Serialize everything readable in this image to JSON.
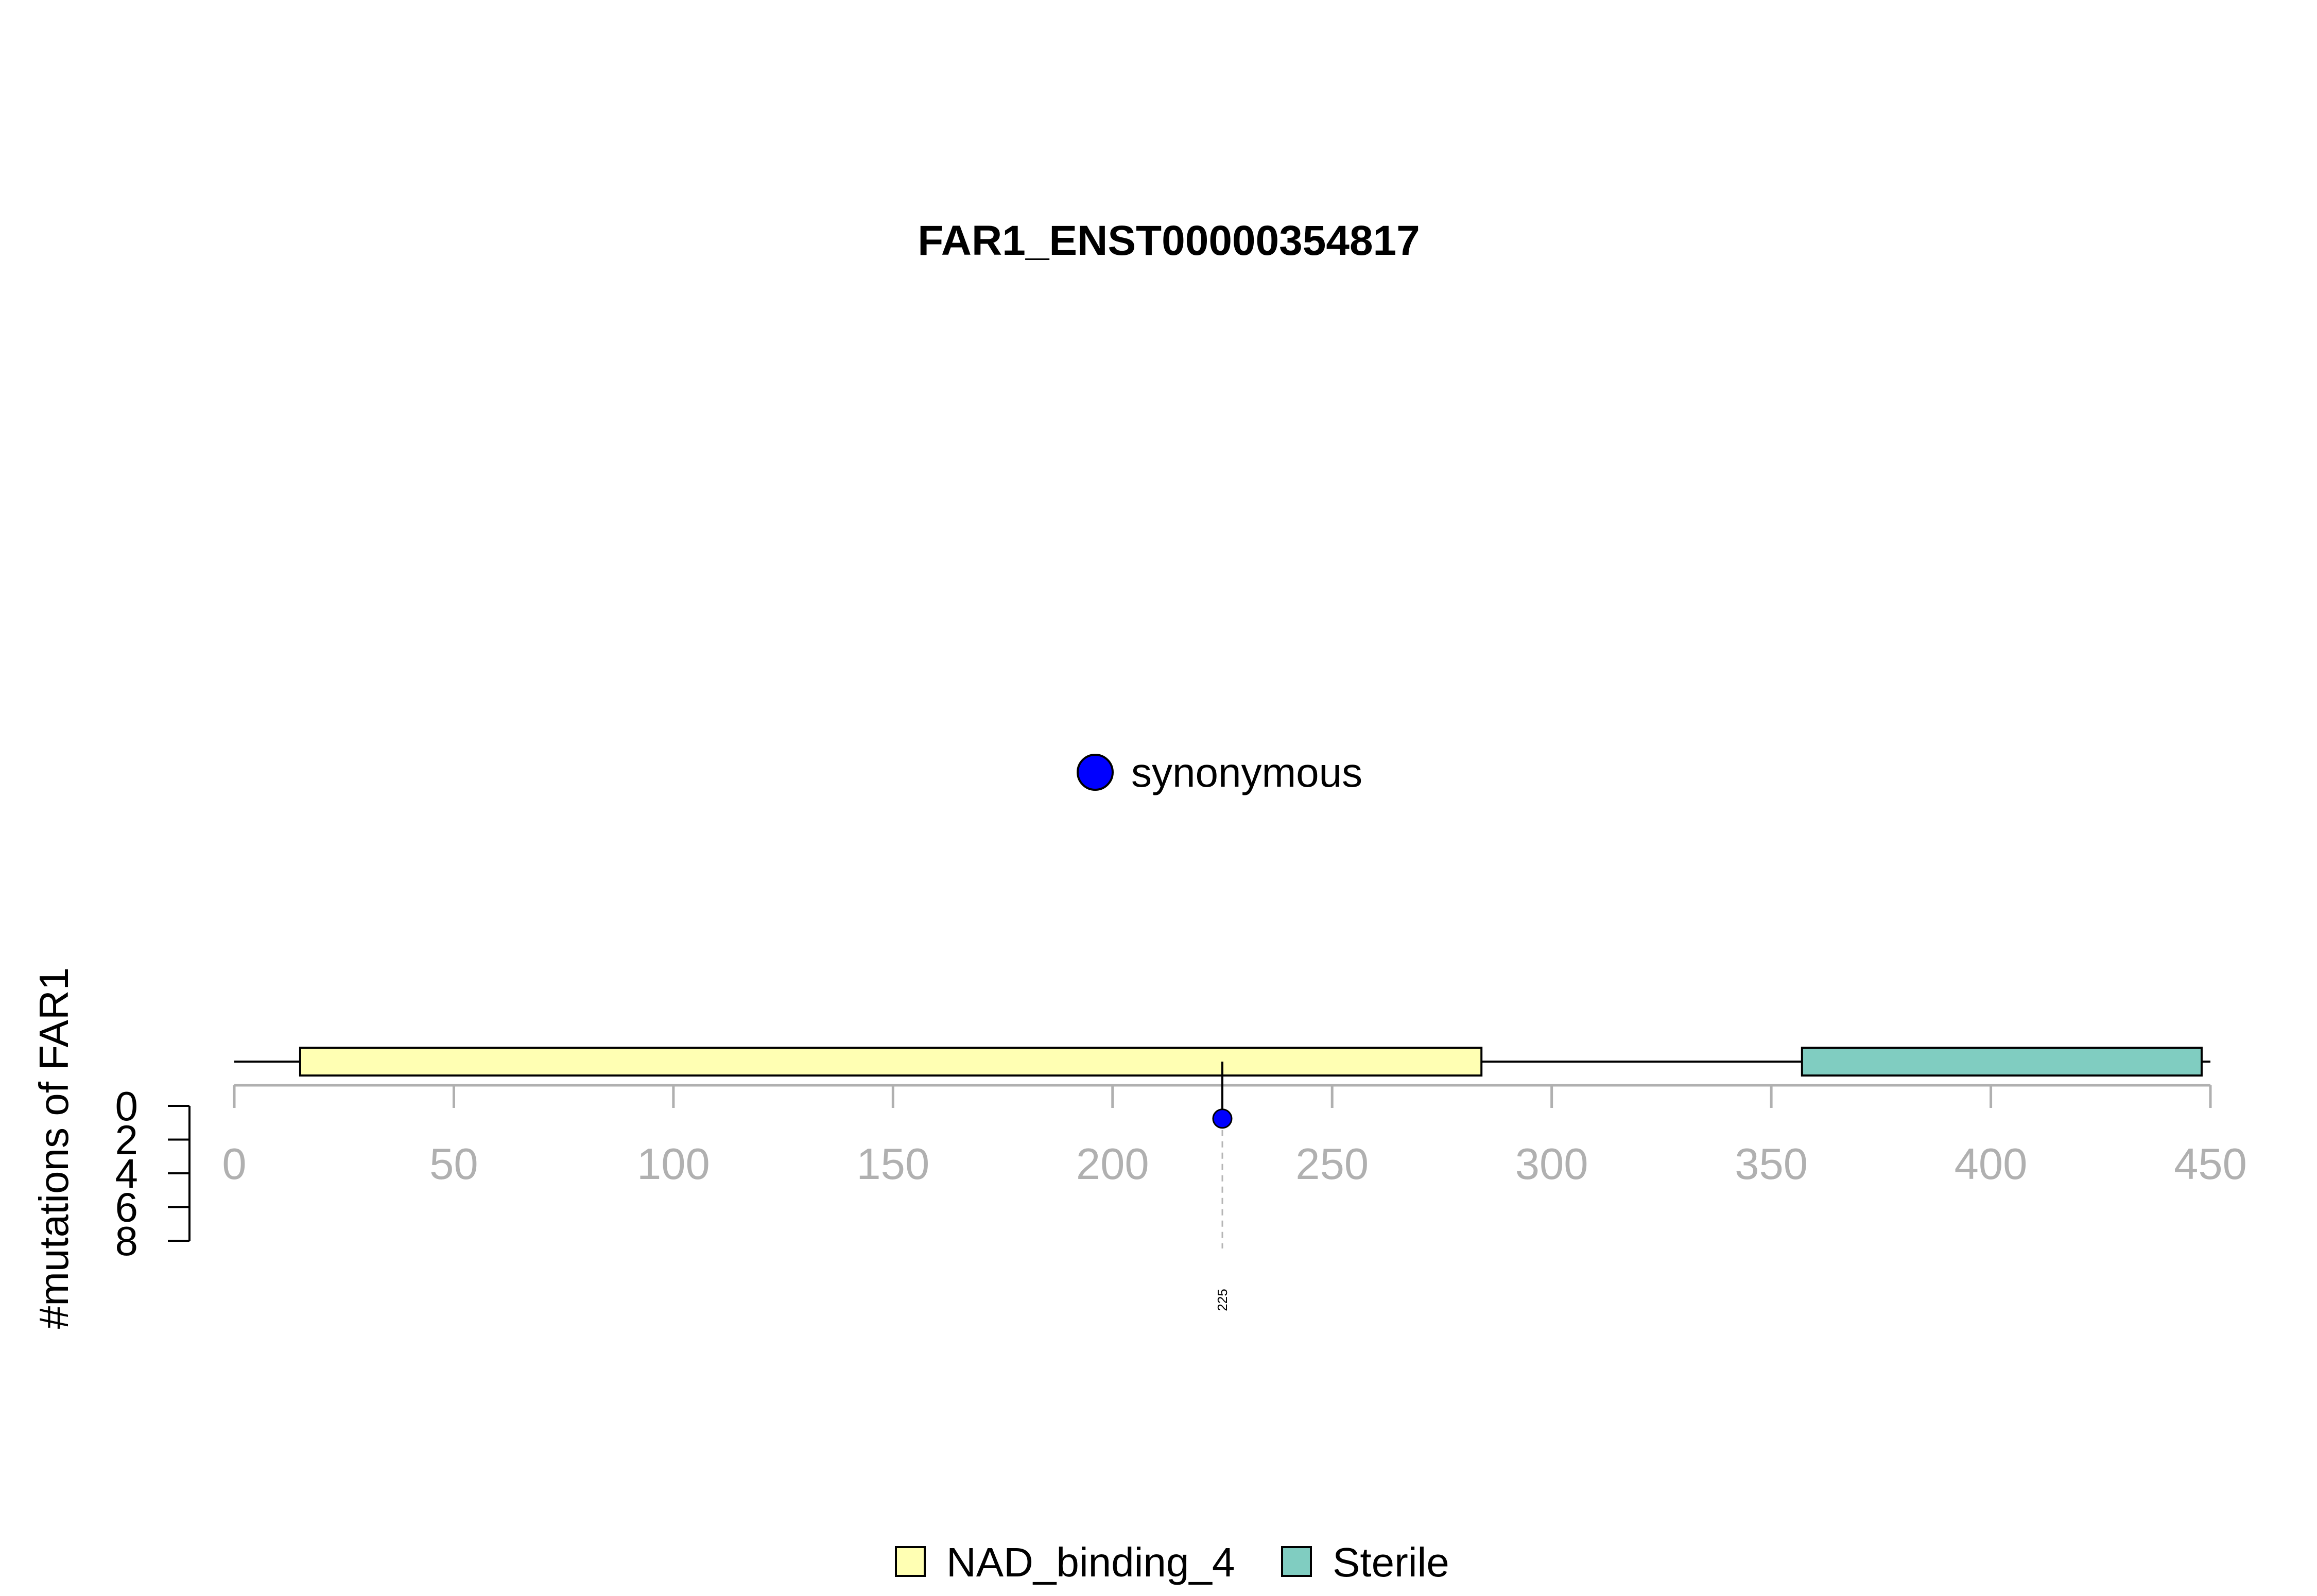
{
  "chart_data": {
    "type": "lollipop",
    "title": "FAR1_ENST00000354817",
    "protein_length": 450,
    "x_ticks": [
      0,
      50,
      100,
      150,
      200,
      250,
      300,
      350,
      400,
      450
    ],
    "xlim": [
      0,
      450
    ],
    "ylabel": "#mutations of FAR1",
    "y_ticks": [
      0,
      2,
      4,
      6,
      8
    ],
    "ylim": [
      0,
      8
    ],
    "domains": [
      {
        "name": "NAD_binding_4",
        "start": 15,
        "end": 284,
        "color": "#ffffb3"
      },
      {
        "name": "Sterile",
        "start": 357,
        "end": 448,
        "color": "#80cdc1"
      }
    ],
    "mutations": [
      {
        "position": 225,
        "count": 1,
        "type": "synonymous",
        "label": "225",
        "color": "#0000ff"
      }
    ],
    "mutation_legend": [
      {
        "label": "synonymous",
        "color": "#0000ff"
      }
    ],
    "domain_legend": [
      {
        "label": "NAD_binding_4",
        "color": "#ffffb3"
      },
      {
        "label": "Sterile",
        "color": "#80cdc1"
      }
    ]
  }
}
